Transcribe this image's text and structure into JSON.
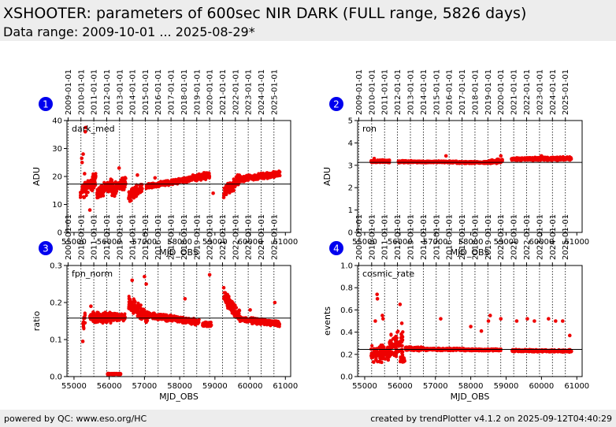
{
  "header": {
    "title": "XSHOOTER: parameters of 600sec NIR DARK (FULL range, 5826 days)",
    "subtitle": "Data range: 2009-10-01 ... 2025-08-29*"
  },
  "footer": {
    "left": "powered by QC: www.eso.org/HC",
    "right": "created by trendPlotter v4.1.2 on 2025-09-12T04:40:29"
  },
  "colors": {
    "points": "#ee0000",
    "badge": "#0000ee",
    "reference": "#000000",
    "background": "#ffffff"
  },
  "date_ticks": [
    "2009-01-01",
    "2010-01-01",
    "2011-01-01",
    "2012-01-01",
    "2013-01-01",
    "2014-01-01",
    "2015-01-01",
    "2016-01-01",
    "2017-01-01",
    "2018-01-01",
    "2019-01-01",
    "2020-01-01",
    "2021-01-01",
    "2022-01-01",
    "2023-01-01",
    "2024-01-01",
    "2025-01-01"
  ],
  "date_tick_mjd": [
    54832,
    55197,
    55562,
    55927,
    56293,
    56658,
    57023,
    57388,
    57754,
    58119,
    58484,
    58849,
    59215,
    59580,
    59945,
    60310,
    60676
  ],
  "chart_data": [
    {
      "id": 1,
      "type": "scatter",
      "label": "dark_med",
      "xlabel": "MJD_OBS",
      "ylabel": "ADU",
      "xlim": [
        54800,
        61150
      ],
      "ylim": [
        0,
        40
      ],
      "xticks": [
        55000,
        56000,
        57000,
        58000,
        59000,
        60000,
        61000
      ],
      "yticks": [
        0,
        10,
        20,
        30,
        40
      ],
      "reference": 17.3,
      "segments": [
        {
          "x0": 55180,
          "x1": 55620,
          "y0": 14,
          "y1": 19,
          "spread": 3.5
        },
        {
          "x0": 55650,
          "x1": 56080,
          "y0": 14,
          "y1": 17,
          "spread": 2.5
        },
        {
          "x0": 56080,
          "x1": 56480,
          "y0": 15.5,
          "y1": 18,
          "spread": 2.5
        },
        {
          "x0": 56550,
          "x1": 56950,
          "y0": 13,
          "y1": 16.5,
          "spread": 2.5
        },
        {
          "x0": 57050,
          "x1": 57550,
          "y0": 16.5,
          "y1": 17.5,
          "spread": 1
        },
        {
          "x0": 57550,
          "x1": 58300,
          "y0": 17.5,
          "y1": 19,
          "spread": 1
        },
        {
          "x0": 58300,
          "x1": 58850,
          "y0": 19,
          "y1": 20.5,
          "spread": 1.4
        },
        {
          "x0": 59250,
          "x1": 59700,
          "y0": 14,
          "y1": 19,
          "spread": 2.5
        },
        {
          "x0": 59700,
          "x1": 60850,
          "y0": 19,
          "y1": 21,
          "spread": 1.2
        }
      ],
      "outliers": [
        [
          55220,
          26.5
        ],
        [
          55230,
          25
        ],
        [
          55300,
          21
        ],
        [
          55320,
          36
        ],
        [
          55330,
          37.5
        ],
        [
          55260,
          28
        ],
        [
          55450,
          8
        ],
        [
          56280,
          23
        ],
        [
          56800,
          20.5
        ],
        [
          58950,
          14
        ],
        [
          59250,
          12.5
        ],
        [
          57300,
          19.5
        ],
        [
          56150,
          13
        ],
        [
          55760,
          13.5
        ]
      ]
    },
    {
      "id": 2,
      "type": "scatter",
      "label": "ron",
      "xlabel": "MJD_OBS",
      "ylabel": "ADU",
      "xlim": [
        54800,
        61150
      ],
      "ylim": [
        0,
        5
      ],
      "xticks": [
        55000,
        56000,
        57000,
        58000,
        59000,
        60000,
        61000
      ],
      "yticks": [
        0,
        1,
        2,
        3,
        4,
        5
      ],
      "reference": 3.13,
      "segments": [
        {
          "x0": 55180,
          "x1": 55700,
          "y0": 3.18,
          "y1": 3.18,
          "spread": 0.07
        },
        {
          "x0": 55950,
          "x1": 56450,
          "y0": 3.16,
          "y1": 3.16,
          "spread": 0.06
        },
        {
          "x0": 56450,
          "x1": 57600,
          "y0": 3.15,
          "y1": 3.15,
          "spread": 0.05
        },
        {
          "x0": 57600,
          "x1": 58500,
          "y0": 3.12,
          "y1": 3.13,
          "spread": 0.05
        },
        {
          "x0": 58500,
          "x1": 58900,
          "y0": 3.15,
          "y1": 3.2,
          "spread": 0.1
        },
        {
          "x0": 59150,
          "x1": 59600,
          "y0": 3.28,
          "y1": 3.28,
          "spread": 0.07
        },
        {
          "x0": 59600,
          "x1": 60850,
          "y0": 3.28,
          "y1": 3.3,
          "spread": 0.09
        }
      ],
      "outliers": [
        [
          57300,
          3.42
        ],
        [
          58850,
          3.42
        ],
        [
          60000,
          3.42
        ],
        [
          55270,
          3.3
        ]
      ]
    },
    {
      "id": 3,
      "type": "scatter",
      "label": "fpn_norm",
      "xlabel": "MJD_OBS",
      "ylabel": "ratio",
      "xlim": [
        54800,
        61150
      ],
      "ylim": [
        0,
        0.3
      ],
      "xticks": [
        55000,
        56000,
        57000,
        58000,
        59000,
        60000,
        61000
      ],
      "yticks": [
        "0.0",
        "0.1",
        "0.2",
        "0.3"
      ],
      "reference": 0.158,
      "segments": [
        {
          "x0": 55250,
          "x1": 55320,
          "y0": 0.13,
          "y1": 0.16,
          "spread": 0.02
        },
        {
          "x0": 55450,
          "x1": 56080,
          "y0": 0.16,
          "y1": 0.16,
          "spread": 0.016
        },
        {
          "x0": 55950,
          "x1": 56330,
          "y0": 0.007,
          "y1": 0.007,
          "spread": 0.002
        },
        {
          "x0": 56080,
          "x1": 56450,
          "y0": 0.16,
          "y1": 0.16,
          "spread": 0.012
        },
        {
          "x0": 56550,
          "x1": 57100,
          "y0": 0.2,
          "y1": 0.16,
          "spread": 0.022
        },
        {
          "x0": 57100,
          "x1": 58550,
          "y0": 0.165,
          "y1": 0.147,
          "spread": 0.01
        },
        {
          "x0": 58650,
          "x1": 58900,
          "y0": 0.14,
          "y1": 0.14,
          "spread": 0.008
        },
        {
          "x0": 59250,
          "x1": 59700,
          "y0": 0.22,
          "y1": 0.16,
          "spread": 0.022
        },
        {
          "x0": 59700,
          "x1": 60850,
          "y0": 0.155,
          "y1": 0.143,
          "spread": 0.009
        }
      ],
      "outliers": [
        [
          55250,
          0.095
        ],
        [
          55480,
          0.19
        ],
        [
          56650,
          0.26
        ],
        [
          57000,
          0.27
        ],
        [
          57050,
          0.25
        ],
        [
          58850,
          0.275
        ],
        [
          58150,
          0.21
        ],
        [
          60000,
          0.18
        ],
        [
          60700,
          0.2
        ],
        [
          59250,
          0.24
        ]
      ]
    },
    {
      "id": 4,
      "type": "scatter",
      "label": "cosmic_rate",
      "xlabel": "MJD_OBS",
      "ylabel": "events",
      "xlim": [
        54800,
        61150
      ],
      "ylim": [
        0,
        1.0
      ],
      "xticks": [
        55000,
        56000,
        57000,
        58000,
        59000,
        60000,
        61000
      ],
      "yticks": [
        "0.0",
        "0.2",
        "0.4",
        "0.6",
        "0.8",
        "1.0"
      ],
      "reference": 0.245,
      "segments": [
        {
          "x0": 55180,
          "x1": 55700,
          "y0": 0.2,
          "y1": 0.22,
          "spread": 0.09
        },
        {
          "x0": 55700,
          "x1": 56080,
          "y0": 0.28,
          "y1": 0.3,
          "spread": 0.12
        },
        {
          "x0": 56000,
          "x1": 56150,
          "y0": 0.15,
          "y1": 0.15,
          "spread": 0.03
        },
        {
          "x0": 56150,
          "x1": 56700,
          "y0": 0.25,
          "y1": 0.25,
          "spread": 0.02
        },
        {
          "x0": 56700,
          "x1": 57800,
          "y0": 0.245,
          "y1": 0.245,
          "spread": 0.012
        },
        {
          "x0": 57800,
          "x1": 58850,
          "y0": 0.24,
          "y1": 0.24,
          "spread": 0.01
        },
        {
          "x0": 59150,
          "x1": 60850,
          "y0": 0.235,
          "y1": 0.23,
          "spread": 0.012
        }
      ],
      "outliers": [
        [
          55350,
          0.74
        ],
        [
          55360,
          0.7
        ],
        [
          55500,
          0.55
        ],
        [
          55520,
          0.52
        ],
        [
          56000,
          0.65
        ],
        [
          56050,
          0.48
        ],
        [
          57150,
          0.52
        ],
        [
          58500,
          0.5
        ],
        [
          58550,
          0.55
        ],
        [
          58850,
          0.52
        ],
        [
          59300,
          0.5
        ],
        [
          59600,
          0.52
        ],
        [
          59800,
          0.5
        ],
        [
          60200,
          0.52
        ],
        [
          60400,
          0.5
        ],
        [
          60600,
          0.5
        ],
        [
          60800,
          0.37
        ],
        [
          58300,
          0.41
        ],
        [
          58000,
          0.45
        ],
        [
          55300,
          0.5
        ]
      ]
    }
  ]
}
